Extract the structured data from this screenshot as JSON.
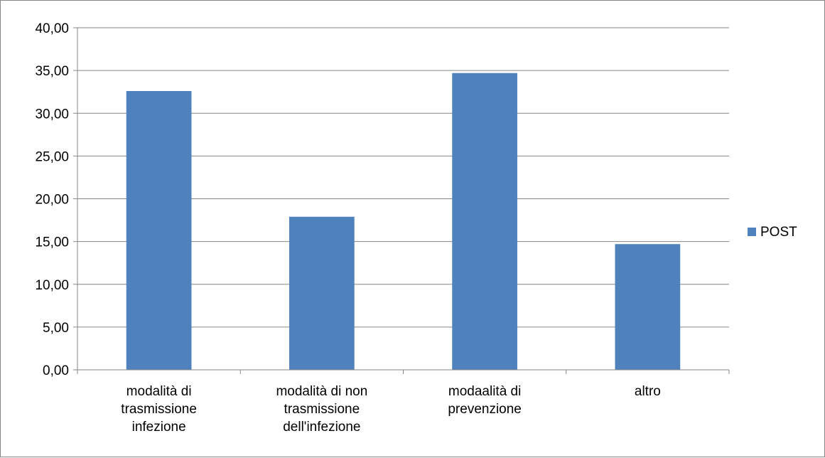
{
  "chart_data": {
    "type": "bar",
    "categories": [
      [
        "modalità di",
        "trasmissione",
        "infezione"
      ],
      [
        "modalità di non",
        "trasmissione",
        "dell'infezione"
      ],
      [
        "modaalità di",
        "prevenzione"
      ],
      [
        "altro"
      ]
    ],
    "series": [
      {
        "name": "POST",
        "values": [
          32.6,
          17.9,
          34.7,
          14.7
        ],
        "color": "#4f81bd"
      }
    ],
    "yticks": [
      "0,00",
      "5,00",
      "10,00",
      "15,00",
      "20,00",
      "25,00",
      "30,00",
      "35,00",
      "40,00"
    ],
    "ylim": [
      0,
      40
    ],
    "grid": true,
    "legend_position": "right",
    "title": "",
    "xlabel": "",
    "ylabel": ""
  }
}
